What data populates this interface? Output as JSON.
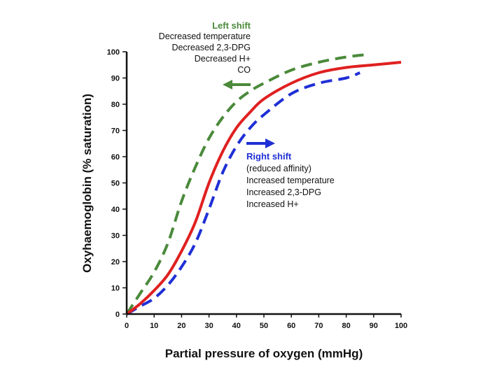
{
  "chart_data": {
    "type": "line",
    "xlabel": "Partial pressure of oxygen (mmHg)",
    "ylabel": "Oxyhaemoglobin (% saturation)",
    "xlim": [
      0,
      100
    ],
    "ylim": [
      0,
      100
    ],
    "xticks": [
      "0",
      "10",
      "20",
      "30",
      "40",
      "50",
      "60",
      "70",
      "80",
      "90",
      "100"
    ],
    "yticks": [
      "0",
      "10",
      "20",
      "30",
      "40",
      "50",
      "60",
      "70",
      "80",
      "90",
      "100"
    ],
    "grid": false,
    "series": [
      {
        "style": "solid",
        "color": "#e02020",
        "x": [
          0,
          5,
          10,
          15,
          20,
          25,
          30,
          35,
          40,
          45,
          50,
          60,
          70,
          80,
          90,
          100
        ],
        "y": [
          0,
          4,
          9,
          15,
          24,
          35,
          50,
          62,
          71,
          77,
          82,
          88,
          92,
          94,
          95,
          96
        ]
      },
      {
        "style": "dashed",
        "color": "#4a8a3a",
        "x": [
          0,
          5,
          10,
          15,
          20,
          25,
          30,
          35,
          40,
          45,
          50,
          60,
          70,
          80,
          88
        ],
        "y": [
          0,
          8,
          16,
          27,
          43,
          56,
          67,
          75,
          81,
          85,
          88,
          93,
          96,
          98,
          99
        ]
      },
      {
        "style": "dashed",
        "color": "#1f2fd6",
        "x": [
          0,
          5,
          10,
          15,
          20,
          25,
          30,
          35,
          40,
          45,
          50,
          60,
          70,
          80,
          85
        ],
        "y": [
          0,
          3,
          6,
          11,
          18,
          27,
          40,
          54,
          64,
          71,
          76,
          84,
          88,
          90,
          92
        ]
      }
    ],
    "annotations": {
      "left_shift": {
        "title": "Left shift",
        "lines": [
          "Decreased temperature",
          "Decreased 2,3-DPG",
          "Decreased H+",
          "CO"
        ],
        "color": "#4a8a3a",
        "arrow": "left"
      },
      "right_shift": {
        "title": "Right shift",
        "lines": [
          "(reduced affinity)",
          "Increased temperature",
          "Increased 2,3-DPG",
          "Increased H+"
        ],
        "color": "#1f2fd6",
        "arrow": "right"
      }
    }
  }
}
